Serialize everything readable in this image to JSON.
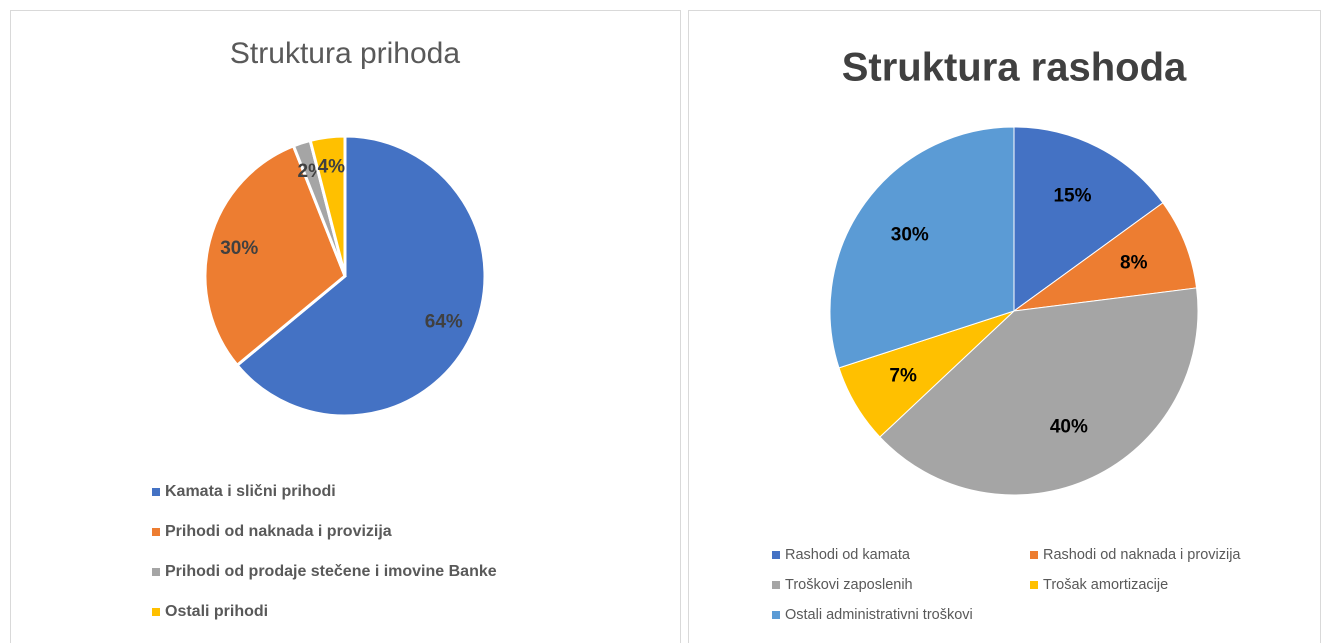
{
  "chart_data": [
    {
      "type": "pie",
      "title": "Struktura prihoda",
      "categories": [
        "Kamata i slični prihodi",
        "Prihodi od naknada i provizija",
        "Prihodi od prodaje stečene i imovine Banke",
        "Ostali prihodi"
      ],
      "values": [
        64,
        30,
        2,
        4
      ],
      "value_labels": [
        "64%",
        "30%",
        "2%",
        "4%"
      ],
      "colors": [
        "#4472c4",
        "#ed7d31",
        "#a5a5a5",
        "#ffc000"
      ]
    },
    {
      "type": "pie",
      "title": "Struktura rashoda",
      "categories": [
        "Rashodi od kamata",
        "Rashodi od naknada i provizija",
        "Troškovi zaposlenih",
        "Trošak amortizacije",
        "Ostali administrativni troškovi"
      ],
      "values": [
        15,
        8,
        40,
        7,
        30
      ],
      "value_labels": [
        "15%",
        "8%",
        "40%",
        "7%",
        "30%"
      ],
      "colors": [
        "#4472c4",
        "#ed7d31",
        "#a5a5a5",
        "#ffc000",
        "#5b9bd5"
      ]
    }
  ]
}
